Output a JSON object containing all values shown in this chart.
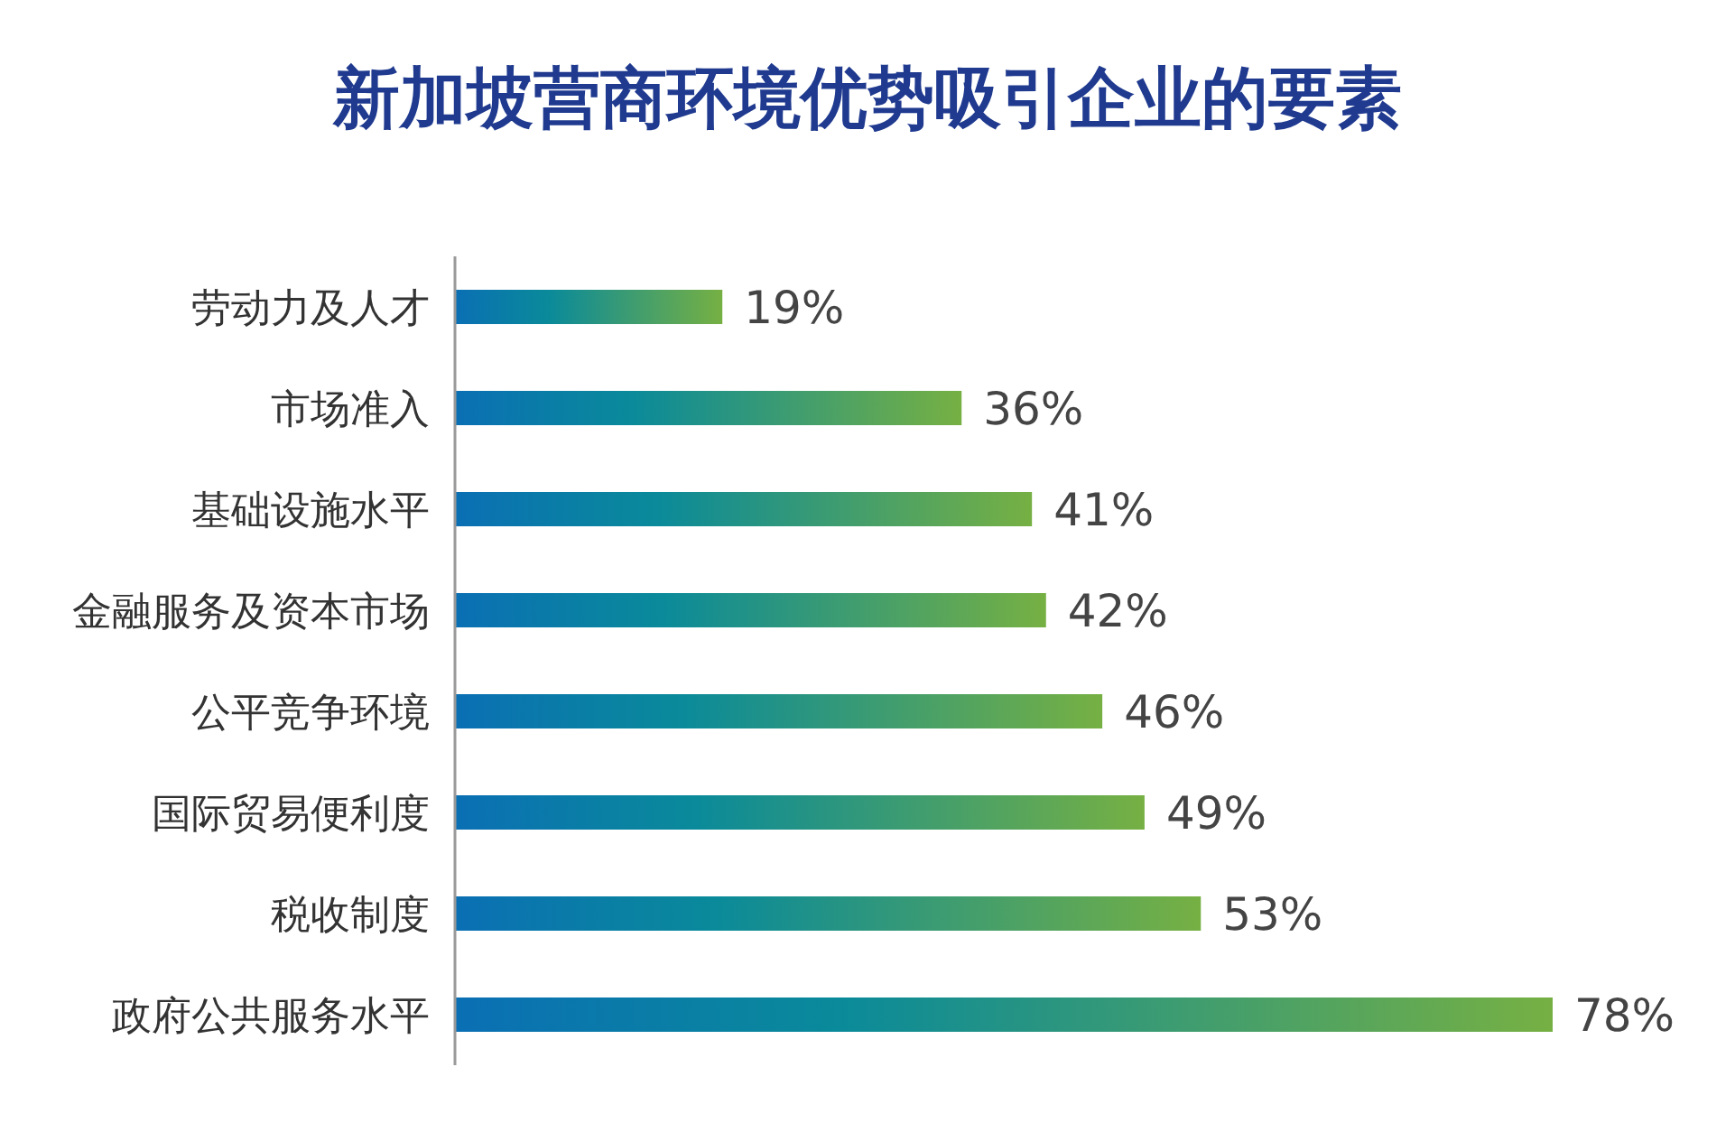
{
  "chart_data": {
    "type": "bar",
    "orientation": "horizontal",
    "title": "新加坡营商环境优势吸引企业的要素",
    "categories": [
      "劳动力及人才",
      "市场准入",
      "基础设施水平",
      "金融服务及资本市场",
      "公平竞争环境",
      "国际贸易便利度",
      "税收制度",
      "政府公共服务水平"
    ],
    "values": [
      19,
      36,
      41,
      42,
      46,
      49,
      53,
      78
    ],
    "value_labels": [
      "19%",
      "36%",
      "41%",
      "42%",
      "46%",
      "49%",
      "53%",
      "78%"
    ],
    "color": "#76b043"
  }
}
